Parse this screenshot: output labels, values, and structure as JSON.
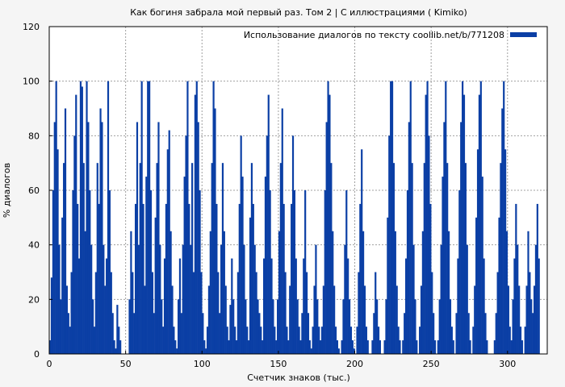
{
  "chart_data": {
    "type": "bar",
    "title": "Как богиня забрала мой первый раз. Том 2 | С иллюстрациями ( Kimiko)",
    "xlabel": "Счетчик знаков (тыс.)",
    "ylabel": "% диалогов",
    "xlim": [
      0,
      326
    ],
    "ylim": [
      0,
      120
    ],
    "xticks": [
      0,
      50,
      100,
      150,
      200,
      250,
      300
    ],
    "yticks": [
      0,
      20,
      40,
      60,
      80,
      100,
      120
    ],
    "grid": true,
    "legend_position": "top-right",
    "series": [
      {
        "name": "Использование диалогов по тексту coollib.net/b/771208",
        "color": "#0b3fa5",
        "x_start": 0,
        "x_step": 1,
        "values": [
          5,
          28,
          60,
          85,
          100,
          75,
          40,
          20,
          50,
          70,
          90,
          25,
          15,
          10,
          30,
          60,
          80,
          95,
          55,
          35,
          100,
          98,
          70,
          45,
          100,
          85,
          60,
          40,
          20,
          10,
          30,
          70,
          55,
          90,
          85,
          40,
          25,
          35,
          100,
          60,
          30,
          15,
          5,
          2,
          18,
          10,
          5,
          0,
          0,
          0,
          0,
          0,
          20,
          45,
          30,
          15,
          55,
          85,
          40,
          70,
          100,
          55,
          25,
          65,
          100,
          100,
          60,
          30,
          15,
          50,
          70,
          85,
          40,
          20,
          10,
          35,
          55,
          75,
          82,
          45,
          25,
          10,
          5,
          2,
          20,
          35,
          15,
          40,
          65,
          80,
          100,
          55,
          40,
          70,
          30,
          95,
          100,
          85,
          60,
          30,
          15,
          5,
          2,
          10,
          25,
          45,
          70,
          100,
          90,
          55,
          30,
          15,
          40,
          70,
          45,
          25,
          10,
          5,
          18,
          35,
          20,
          10,
          5,
          30,
          55,
          80,
          65,
          40,
          20,
          10,
          5,
          50,
          70,
          55,
          40,
          30,
          20,
          15,
          10,
          5,
          35,
          65,
          80,
          95,
          60,
          35,
          20,
          10,
          5,
          20,
          45,
          70,
          90,
          55,
          30,
          10,
          5,
          25,
          55,
          80,
          60,
          35,
          20,
          10,
          5,
          15,
          35,
          60,
          30,
          15,
          5,
          2,
          10,
          25,
          40,
          20,
          10,
          5,
          10,
          25,
          60,
          85,
          100,
          95,
          70,
          45,
          25,
          10,
          5,
          2,
          0,
          5,
          20,
          40,
          60,
          35,
          20,
          10,
          5,
          2,
          0,
          10,
          30,
          55,
          75,
          45,
          25,
          10,
          5,
          0,
          0,
          5,
          15,
          30,
          20,
          10,
          5,
          0,
          0,
          5,
          20,
          50,
          80,
          100,
          100,
          70,
          45,
          25,
          10,
          5,
          0,
          5,
          15,
          35,
          60,
          85,
          100,
          70,
          40,
          20,
          5,
          0,
          10,
          25,
          45,
          70,
          95,
          100,
          80,
          55,
          30,
          15,
          5,
          0,
          5,
          20,
          40,
          65,
          85,
          100,
          70,
          45,
          20,
          10,
          5,
          0,
          15,
          35,
          60,
          85,
          100,
          95,
          70,
          40,
          15,
          5,
          0,
          10,
          25,
          50,
          75,
          95,
          100,
          65,
          35,
          15,
          5,
          0,
          0,
          0,
          0,
          5,
          15,
          30,
          50,
          70,
          90,
          100,
          75,
          45,
          25,
          10,
          5,
          20,
          35,
          55,
          40,
          25,
          10,
          5,
          0,
          10,
          25,
          45,
          30,
          20,
          15,
          25,
          40,
          55,
          35
        ]
      }
    ]
  }
}
